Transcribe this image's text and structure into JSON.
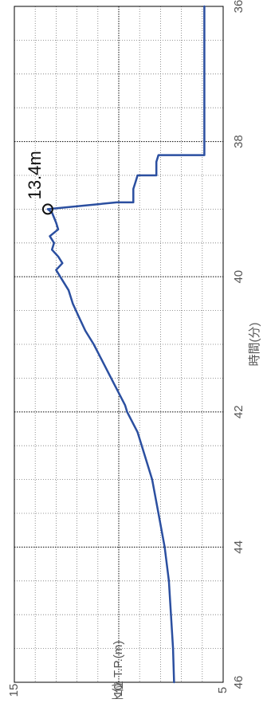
{
  "chart_data": {
    "type": "line",
    "orientation": "rotated-90-clockwise",
    "title": "",
    "xlabel": "時間(分)",
    "ylabel": "水位 T.P.(m)",
    "xlim": [
      36,
      46
    ],
    "ylim": [
      5,
      15
    ],
    "x_ticks": [
      "36",
      "38",
      "40",
      "42",
      "44",
      "46"
    ],
    "y_ticks": [
      "5",
      "10",
      "15"
    ],
    "grid": true,
    "legend": "none",
    "line_color": "#2b4fa0",
    "series": [
      {
        "x": [
          36.0,
          38.0,
          38.2,
          38.2,
          38.3,
          38.5,
          38.5,
          38.6,
          38.7,
          38.9,
          38.9,
          39.0,
          39.05,
          39.2,
          39.3,
          39.4,
          39.5,
          39.6,
          39.7,
          39.8,
          39.9,
          40.0,
          40.2,
          40.4,
          40.6,
          40.8,
          41.0,
          41.3,
          41.6,
          41.9,
          42.0,
          42.3,
          42.7,
          43.0,
          43.5,
          44.0,
          44.5,
          45.0,
          45.5,
          46.0
        ],
        "y": [
          5.9,
          5.9,
          5.9,
          8.1,
          8.2,
          8.2,
          9.1,
          9.2,
          9.3,
          9.3,
          10.1,
          13.4,
          13.2,
          13.0,
          12.9,
          13.3,
          13.1,
          13.2,
          12.9,
          12.7,
          13.0,
          12.8,
          12.4,
          12.2,
          11.9,
          11.6,
          11.2,
          10.7,
          10.2,
          9.7,
          9.6,
          9.1,
          8.7,
          8.4,
          8.1,
          7.8,
          7.6,
          7.5,
          7.4,
          7.35
        ]
      }
    ],
    "annotations": [
      {
        "text": "13.4m",
        "x": 39.0,
        "y": 13.4,
        "marker": "circle"
      }
    ]
  }
}
